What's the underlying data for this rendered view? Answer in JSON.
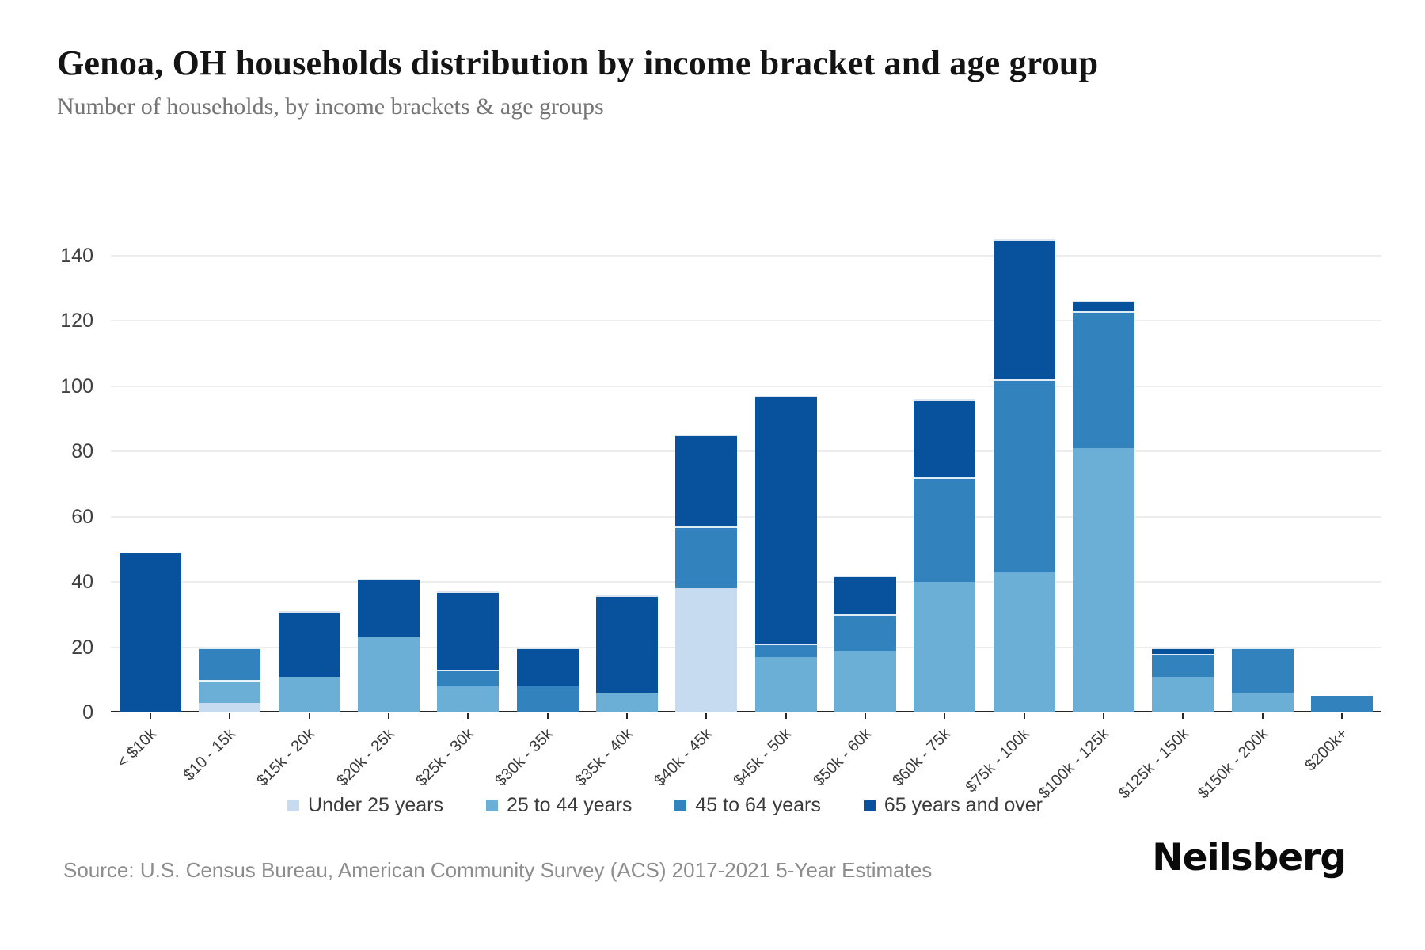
{
  "page": {
    "source": "Source: U.S. Census Bureau, American Community Survey (ACS) 2017-2021 5-Year Estimates",
    "brand": "Neilsberg"
  },
  "chart_data": {
    "type": "bar",
    "stacked": true,
    "title": "Genoa, OH households distribution by income bracket and age group",
    "subtitle": "Number of households, by income brackets & age groups",
    "categories": [
      "< $10k",
      "$10 - 15k",
      "$15k - 20k",
      "$20k - 25k",
      "$25k - 30k",
      "$30k - 35k",
      "$35k - 40k",
      "$40k - 45k",
      "$45k - 50k",
      "$50k - 60k",
      "$60k - 75k",
      "$75k - 100k",
      "$100k - 125k",
      "$125k - 150k",
      "$150k - 200k",
      "$200k+"
    ],
    "series": [
      {
        "name": "Under 25 years",
        "color": "#c6dbef",
        "values": [
          0,
          3,
          0,
          0,
          0,
          0,
          0,
          38,
          0,
          0,
          0,
          0,
          0,
          0,
          0,
          0
        ]
      },
      {
        "name": "25 to 44 years",
        "color": "#6baed6",
        "values": [
          0,
          7,
          11,
          23,
          8,
          0,
          6,
          0,
          17,
          19,
          40,
          43,
          81,
          11,
          6,
          0
        ]
      },
      {
        "name": "45 to 64 years",
        "color": "#3182bd",
        "values": [
          0,
          10,
          0,
          0,
          5,
          8,
          0,
          19,
          4,
          11,
          32,
          59,
          42,
          7,
          14,
          5
        ]
      },
      {
        "name": "65 years and over",
        "color": "#08519c",
        "values": [
          49,
          0,
          20,
          18,
          24,
          12,
          30,
          28,
          76,
          12,
          24,
          43,
          3,
          2,
          0,
          0
        ]
      }
    ],
    "totals": [
      49,
      20,
      31,
      41,
      37,
      20,
      36,
      85,
      97,
      42,
      96,
      145,
      126,
      20,
      20,
      5
    ],
    "ylabel": "",
    "xlabel": "",
    "yticks": [
      0,
      20,
      40,
      60,
      80,
      100,
      120,
      140
    ],
    "ylim": [
      0,
      155
    ],
    "grid": true,
    "legend_position": "bottom"
  }
}
